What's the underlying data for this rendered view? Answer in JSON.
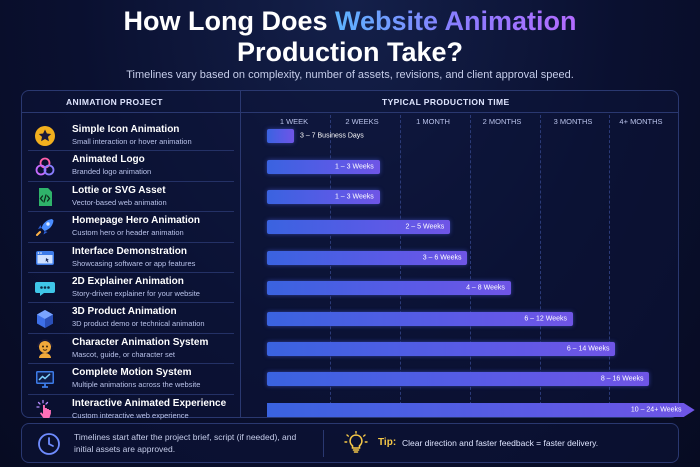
{
  "title": {
    "line1_prefix": "How Long Does ",
    "line1_accent": "Website Animation",
    "line2": "Production Take?"
  },
  "subtitle": "Timelines vary based on complexity, number of assets, revisions, and client approval speed.",
  "colors": {
    "background": "#0a1030",
    "bar_start": "#3a63e0",
    "bar_end": "#6f55e6",
    "accent_blue": "#5db4ff",
    "accent_purple": "#b36bff",
    "tip_yellow": "#f7c948"
  },
  "chart_data": {
    "type": "bar",
    "orientation": "horizontal",
    "category_header": "ANIMATION PROJECT",
    "axis_header": "TYPICAL PRODUCTION TIME",
    "tick_labels": [
      "1 WEEK",
      "2 WEEKS",
      "1 MONTH",
      "2 MONTHS",
      "3 MONTHS",
      "4+ MONTHS"
    ],
    "tick_values_weeks": [
      1,
      2,
      4,
      8,
      12,
      16
    ],
    "grid": true,
    "categories": [
      {
        "name": "Simple Icon Animation",
        "description": "Small interaction or hover animation",
        "icon": "star-icon",
        "range_label": "3 – 7 Business Days",
        "start_weeks": 0.6,
        "end_weeks": 1.0,
        "label_outside": true
      },
      {
        "name": "Animated Logo",
        "description": "Branded logo animation",
        "icon": "logo-knot-icon",
        "range_label": "1 – 3 Weeks",
        "start_weeks": 0.6,
        "end_weeks": 2.5
      },
      {
        "name": "Lottie or SVG Asset",
        "description": "Vector-based web animation",
        "icon": "code-file-icon",
        "range_label": "1 – 3 Weeks",
        "start_weeks": 0.6,
        "end_weeks": 2.5
      },
      {
        "name": "Homepage Hero Animation",
        "description": "Custom hero or header animation",
        "icon": "rocket-icon",
        "range_label": "2 – 5 Weeks",
        "start_weeks": 0.6,
        "end_weeks": 5.0
      },
      {
        "name": "Interface Demonstration",
        "description": "Showcasing software or app features",
        "icon": "browser-window-icon",
        "range_label": "3 – 6 Weeks",
        "start_weeks": 0.6,
        "end_weeks": 6.0
      },
      {
        "name": "2D Explainer Animation",
        "description": "Story-driven explainer for your website",
        "icon": "chat-bubble-icon",
        "range_label": "4 – 8 Weeks",
        "start_weeks": 0.6,
        "end_weeks": 8.5
      },
      {
        "name": "3D Product Animation",
        "description": "3D product demo or technical animation",
        "icon": "cube-icon",
        "range_label": "6 – 12 Weeks",
        "start_weeks": 0.6,
        "end_weeks": 12.0
      },
      {
        "name": "Character Animation System",
        "description": "Mascot, guide, or character set",
        "icon": "character-icon",
        "range_label": "6 – 14 Weeks",
        "start_weeks": 0.6,
        "end_weeks": 14.5
      },
      {
        "name": "Complete Motion System",
        "description": "Multiple animations across the website",
        "icon": "monitor-chart-icon",
        "range_label": "8 – 16 Weeks",
        "start_weeks": 0.6,
        "end_weeks": 16.5
      },
      {
        "name": "Interactive Animated Experience",
        "description": "Custom interactive web experience",
        "icon": "pointer-click-icon",
        "range_label": "10 – 24+ Weeks",
        "start_weeks": 0.6,
        "end_weeks": 18.5,
        "arrow": true
      }
    ]
  },
  "footer": {
    "clock_icon": "clock-icon",
    "note": "Timelines start after the project brief, script (if needed), and initial assets are approved.",
    "bulb_icon": "lightbulb-icon",
    "tip_label": "Tip:",
    "tip_text": "Clear direction and faster feedback = faster delivery."
  }
}
